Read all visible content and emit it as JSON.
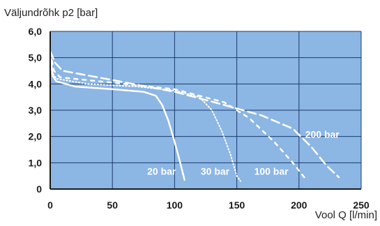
{
  "chart_data": {
    "type": "line",
    "ylabel": "Väljundrõhk p2 [bar]",
    "xlabel": "Vool Q [l/min]",
    "xlim": [
      0,
      250
    ],
    "ylim": [
      0,
      6
    ],
    "x_ticks": [
      "0",
      "50",
      "100",
      "150",
      "200",
      "250"
    ],
    "y_ticks": [
      "0",
      "1,0",
      "2,0",
      "3,0",
      "4,0",
      "5,0",
      "6,0"
    ],
    "grid": true,
    "background_color": "#8cb6e4",
    "line_color": "#ffffff",
    "series": [
      {
        "name": "20 bar",
        "style": "solid",
        "label_at": [
          78,
          0.55
        ],
        "points": [
          [
            0,
            5.1
          ],
          [
            1,
            4.7
          ],
          [
            2,
            4.3
          ],
          [
            5,
            4.1
          ],
          [
            20,
            3.9
          ],
          [
            50,
            3.8
          ],
          [
            75,
            3.7
          ],
          [
            85,
            3.55
          ],
          [
            90,
            3.2
          ],
          [
            95,
            2.6
          ],
          [
            100,
            1.8
          ],
          [
            104,
            1.1
          ],
          [
            108,
            0.35
          ]
        ]
      },
      {
        "name": "30 bar",
        "style": "dotted",
        "label_at": [
          121,
          0.55
        ],
        "points": [
          [
            0,
            5.2
          ],
          [
            2,
            4.4
          ],
          [
            5,
            4.2
          ],
          [
            30,
            4.0
          ],
          [
            70,
            3.9
          ],
          [
            100,
            3.75
          ],
          [
            120,
            3.5
          ],
          [
            130,
            3.0
          ],
          [
            138,
            2.2
          ],
          [
            145,
            1.3
          ],
          [
            150,
            0.5
          ],
          [
            153,
            0.3
          ]
        ]
      },
      {
        "name": "100 bar",
        "style": "dashed-short",
        "label_at": [
          164,
          0.55
        ],
        "points": [
          [
            0,
            5.2
          ],
          [
            3,
            4.5
          ],
          [
            8,
            4.25
          ],
          [
            50,
            4.05
          ],
          [
            100,
            3.8
          ],
          [
            140,
            3.3
          ],
          [
            160,
            2.7
          ],
          [
            180,
            1.8
          ],
          [
            195,
            1.0
          ],
          [
            205,
            0.4
          ]
        ]
      },
      {
        "name": "200 bar",
        "style": "dashed",
        "label_at": [
          205,
          1.95
        ],
        "points": [
          [
            0,
            5.25
          ],
          [
            4,
            4.8
          ],
          [
            10,
            4.5
          ],
          [
            50,
            4.15
          ],
          [
            100,
            3.7
          ],
          [
            140,
            3.2
          ],
          [
            170,
            2.8
          ],
          [
            195,
            2.3
          ],
          [
            210,
            1.6
          ],
          [
            222,
            0.9
          ],
          [
            232,
            0.45
          ]
        ]
      }
    ]
  }
}
